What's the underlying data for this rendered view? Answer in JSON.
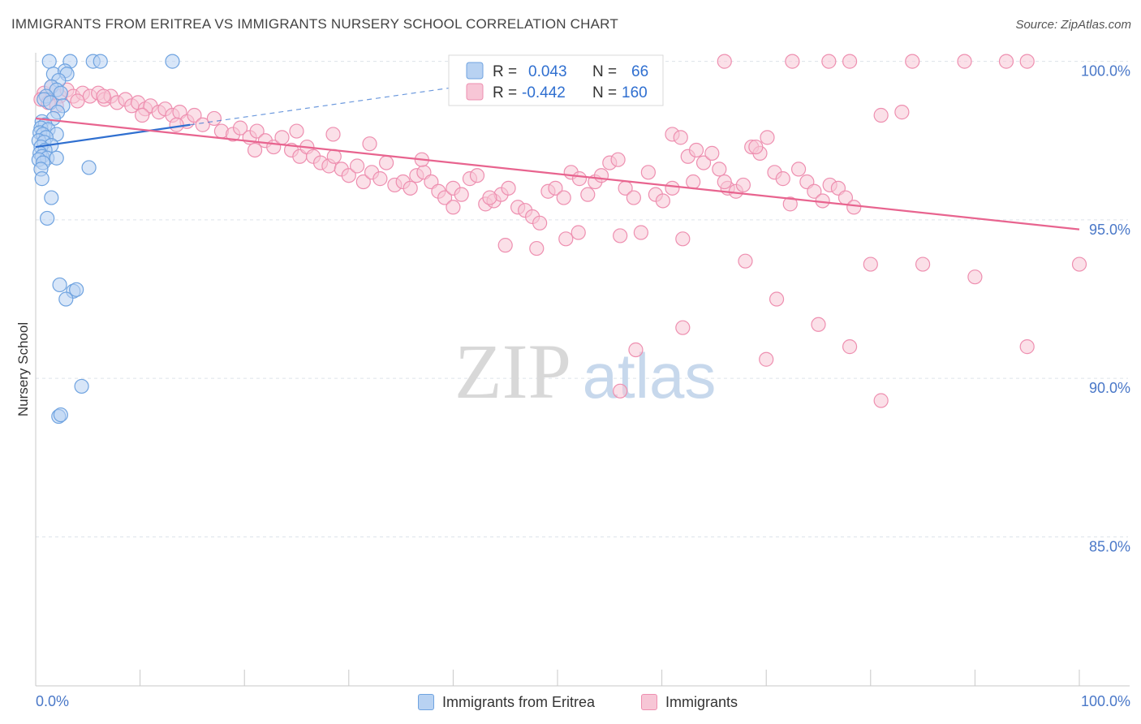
{
  "header": {
    "title": "IMMIGRANTS FROM ERITREA VS IMMIGRANTS NURSERY SCHOOL CORRELATION CHART",
    "source": "Source: ZipAtlas.com"
  },
  "watermark": {
    "zip": "ZIP",
    "atlas": "atlas"
  },
  "colors": {
    "blue": "#6fa3e0",
    "blue_fill": "#b8d2f2",
    "blue_line": "#2f6fd0",
    "pink": "#ee8fb0",
    "pink_fill": "#f7c6d6",
    "pink_line": "#e8648f",
    "axis_text": "#4a78c8",
    "grid": "#dde3ea"
  },
  "stats_legend": {
    "r_label": "R =",
    "n_label": "N =",
    "rows": [
      {
        "series": "Immigrants from Eritrea",
        "r": "0.043",
        "n": "66"
      },
      {
        "series": "Immigrants",
        "r": "-0.442",
        "n": "160"
      }
    ]
  },
  "bottom_legend": [
    "Immigrants from Eritrea",
    "Immigrants"
  ],
  "chart_data": {
    "type": "scatter",
    "title": "IMMIGRANTS FROM ERITREA VS IMMIGRANTS NURSERY SCHOOL CORRELATION CHART",
    "xlabel": "",
    "ylabel": "Nursery School",
    "xlim": [
      0,
      100
    ],
    "ylim": [
      80.3,
      100.4
    ],
    "x_tick_labels": [
      "0.0%",
      "100.0%"
    ],
    "y_ticks": [
      100,
      95,
      90,
      85
    ],
    "y_tick_labels": [
      "100.0%",
      "95.0%",
      "90.0%",
      "85.0%"
    ],
    "grid": "horizontal dashed",
    "series": [
      {
        "name": "Immigrants from Eritrea",
        "color": "blue",
        "trend": {
          "x": [
            0,
            14.8
          ],
          "y": [
            97.3,
            98.0
          ],
          "dashed_to": [
            40.5,
            99.2
          ]
        },
        "points": [
          [
            1.3,
            100
          ],
          [
            3.3,
            100
          ],
          [
            5.5,
            100
          ],
          [
            6.2,
            100
          ],
          [
            13.1,
            100
          ],
          [
            1.7,
            99.6
          ],
          [
            2.8,
            99.7
          ],
          [
            3.0,
            99.6
          ],
          [
            2.2,
            99.4
          ],
          [
            1.5,
            99.2
          ],
          [
            2.0,
            99.1
          ],
          [
            2.4,
            99.0
          ],
          [
            1.0,
            98.9
          ],
          [
            0.8,
            98.8
          ],
          [
            1.4,
            98.7
          ],
          [
            2.6,
            98.6
          ],
          [
            2.1,
            98.4
          ],
          [
            1.7,
            98.2
          ],
          [
            0.6,
            98.1
          ],
          [
            0.9,
            98.0
          ],
          [
            0.5,
            97.9
          ],
          [
            1.2,
            97.85
          ],
          [
            0.4,
            97.75
          ],
          [
            0.7,
            97.7
          ],
          [
            2.0,
            97.7
          ],
          [
            1.0,
            97.6
          ],
          [
            0.3,
            97.5
          ],
          [
            0.8,
            97.45
          ],
          [
            1.5,
            97.35
          ],
          [
            0.5,
            97.3
          ],
          [
            0.9,
            97.2
          ],
          [
            0.4,
            97.1
          ],
          [
            0.6,
            97.0
          ],
          [
            1.1,
            96.95
          ],
          [
            0.3,
            96.9
          ],
          [
            2.0,
            96.95
          ],
          [
            0.7,
            96.8
          ],
          [
            0.5,
            96.6
          ],
          [
            5.1,
            96.65
          ],
          [
            0.6,
            96.3
          ],
          [
            1.5,
            95.7
          ],
          [
            1.1,
            95.05
          ],
          [
            2.3,
            92.95
          ],
          [
            3.6,
            92.75
          ],
          [
            3.9,
            92.8
          ],
          [
            2.9,
            92.5
          ],
          [
            4.4,
            89.75
          ],
          [
            2.2,
            88.8
          ],
          [
            2.4,
            88.85
          ]
        ]
      },
      {
        "name": "Immigrants",
        "color": "pink",
        "trend": {
          "x": [
            0,
            100
          ],
          "y": [
            98.2,
            94.7
          ]
        },
        "points": [
          [
            0.8,
            99.0
          ],
          [
            1.5,
            99.2
          ],
          [
            2.3,
            98.9
          ],
          [
            3.0,
            99.1
          ],
          [
            3.6,
            98.9
          ],
          [
            4.5,
            99.0
          ],
          [
            5.2,
            98.9
          ],
          [
            6.0,
            99.0
          ],
          [
            6.6,
            98.8
          ],
          [
            7.2,
            98.9
          ],
          [
            7.8,
            98.7
          ],
          [
            8.6,
            98.8
          ],
          [
            9.2,
            98.6
          ],
          [
            9.8,
            98.7
          ],
          [
            10.5,
            98.5
          ],
          [
            11.0,
            98.6
          ],
          [
            11.8,
            98.4
          ],
          [
            12.4,
            98.5
          ],
          [
            13.1,
            98.3
          ],
          [
            13.8,
            98.4
          ],
          [
            14.5,
            98.1
          ],
          [
            15.2,
            98.3
          ],
          [
            16.0,
            98.0
          ],
          [
            17.1,
            98.2
          ],
          [
            0.5,
            98.8
          ],
          [
            1.2,
            98.7
          ],
          [
            2.0,
            98.6
          ],
          [
            4.0,
            98.75
          ],
          [
            6.5,
            98.9
          ],
          [
            10.2,
            98.3
          ],
          [
            13.5,
            98.0
          ],
          [
            17.8,
            97.8
          ],
          [
            18.9,
            97.7
          ],
          [
            19.6,
            97.9
          ],
          [
            20.5,
            97.6
          ],
          [
            21.2,
            97.8
          ],
          [
            22.0,
            97.5
          ],
          [
            22.8,
            97.3
          ],
          [
            23.6,
            97.6
          ],
          [
            24.5,
            97.2
          ],
          [
            25.3,
            97.0
          ],
          [
            26.0,
            97.3
          ],
          [
            26.6,
            97.0
          ],
          [
            27.3,
            96.8
          ],
          [
            28.1,
            96.7
          ],
          [
            28.6,
            97.0
          ],
          [
            29.3,
            96.6
          ],
          [
            30.0,
            96.4
          ],
          [
            30.8,
            96.7
          ],
          [
            31.4,
            96.2
          ],
          [
            32.2,
            96.5
          ],
          [
            33.0,
            96.3
          ],
          [
            33.6,
            96.8
          ],
          [
            34.4,
            96.1
          ],
          [
            35.2,
            96.2
          ],
          [
            35.9,
            96.0
          ],
          [
            36.5,
            96.4
          ],
          [
            37.2,
            96.5
          ],
          [
            37.9,
            96.2
          ],
          [
            38.6,
            95.9
          ],
          [
            39.2,
            95.7
          ],
          [
            40.0,
            96.0
          ],
          [
            40.8,
            95.8
          ],
          [
            41.6,
            96.3
          ],
          [
            42.3,
            96.4
          ],
          [
            43.1,
            95.5
          ],
          [
            43.9,
            95.6
          ],
          [
            44.6,
            95.8
          ],
          [
            45.3,
            96.0
          ],
          [
            46.2,
            95.4
          ],
          [
            46.9,
            95.3
          ],
          [
            47.6,
            95.1
          ],
          [
            48.3,
            94.9
          ],
          [
            49.1,
            95.9
          ],
          [
            49.8,
            96.0
          ],
          [
            50.6,
            95.7
          ],
          [
            51.3,
            96.5
          ],
          [
            52.1,
            96.3
          ],
          [
            52.9,
            95.8
          ],
          [
            53.6,
            96.2
          ],
          [
            54.2,
            96.4
          ],
          [
            55.0,
            96.8
          ],
          [
            55.8,
            96.9
          ],
          [
            56.5,
            96.0
          ],
          [
            57.3,
            95.7
          ],
          [
            58.0,
            94.6
          ],
          [
            58.7,
            96.5
          ],
          [
            59.4,
            95.8
          ],
          [
            60.1,
            95.6
          ],
          [
            61.0,
            97.7
          ],
          [
            61.8,
            97.6
          ],
          [
            62.5,
            97.0
          ],
          [
            63.3,
            97.2
          ],
          [
            64.0,
            96.8
          ],
          [
            64.8,
            97.1
          ],
          [
            65.5,
            96.6
          ],
          [
            66.3,
            96.0
          ],
          [
            67.1,
            95.9
          ],
          [
            67.8,
            96.1
          ],
          [
            68.6,
            97.3
          ],
          [
            69.4,
            97.1
          ],
          [
            70.1,
            97.6
          ],
          [
            70.8,
            96.5
          ],
          [
            71.6,
            96.3
          ],
          [
            72.3,
            95.5
          ],
          [
            73.1,
            96.6
          ],
          [
            73.9,
            96.2
          ],
          [
            74.6,
            95.9
          ],
          [
            75.4,
            95.6
          ],
          [
            76.1,
            96.1
          ],
          [
            76.9,
            96.0
          ],
          [
            77.6,
            95.7
          ],
          [
            78.4,
            95.4
          ],
          [
            61.0,
            96.0
          ],
          [
            63.0,
            96.2
          ],
          [
            66.0,
            96.2
          ],
          [
            69.0,
            97.3
          ],
          [
            21.0,
            97.2
          ],
          [
            25.0,
            97.8
          ],
          [
            28.5,
            97.7
          ],
          [
            32.0,
            97.4
          ],
          [
            37.0,
            96.9
          ],
          [
            40.0,
            95.4
          ],
          [
            43.5,
            95.7
          ],
          [
            45.0,
            94.2
          ],
          [
            48.0,
            94.1
          ],
          [
            50.8,
            94.4
          ],
          [
            52.0,
            94.6
          ],
          [
            56.0,
            94.5
          ],
          [
            62.0,
            94.4
          ],
          [
            68.0,
            93.7
          ],
          [
            71.0,
            92.5
          ],
          [
            75.0,
            91.7
          ],
          [
            78.0,
            91.0
          ],
          [
            80.0,
            93.6
          ],
          [
            85.0,
            93.6
          ],
          [
            90.0,
            93.2
          ],
          [
            95.0,
            91.0
          ],
          [
            100.0,
            93.6
          ],
          [
            57.5,
            90.9
          ],
          [
            62.0,
            91.6
          ],
          [
            70.0,
            90.6
          ],
          [
            56.0,
            89.6
          ],
          [
            81.0,
            89.3
          ],
          [
            66.0,
            100
          ],
          [
            72.5,
            100
          ],
          [
            76.0,
            100
          ],
          [
            78.0,
            100
          ],
          [
            84.0,
            100
          ],
          [
            89.0,
            100
          ],
          [
            93.0,
            100
          ],
          [
            95.0,
            100
          ],
          [
            59.0,
            99.05
          ],
          [
            83.0,
            98.4
          ],
          [
            81.0,
            98.3
          ]
        ]
      }
    ]
  }
}
